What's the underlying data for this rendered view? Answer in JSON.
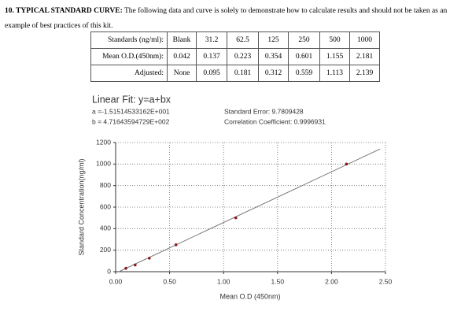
{
  "header": {
    "title": "10. TYPICAL STANDARD CURVE:",
    "text": "The following data and curve is solely to demonstrate how to calculate results and should not be taken as an example of best practices of this kit."
  },
  "table": {
    "rows": [
      [
        "Standards (ng/ml):",
        "Blank",
        "31.2",
        "62.5",
        "125",
        "250",
        "500",
        "1000"
      ],
      [
        "Mean O.D.(450nm):",
        "0.042",
        "0.137",
        "0.223",
        "0.354",
        "0.601",
        "1.155",
        "2.181"
      ],
      [
        "Adjusted:",
        "None",
        "0.095",
        "0.181",
        "0.312",
        "0.559",
        "1.113",
        "2.139"
      ]
    ]
  },
  "fit": {
    "title": "Linear Fit: y=a+bx",
    "a": "a =-1.51514533162E+001",
    "b": "b = 4.71643594729E+002",
    "standard_error": "Standard Error: 9.7809428",
    "correlation": "Correlation Coefficient: 0.9996931"
  },
  "chart_data": {
    "type": "scatter",
    "x": [
      0.095,
      0.181,
      0.312,
      0.559,
      1.113,
      2.139
    ],
    "values": [
      31.2,
      62.5,
      125,
      250,
      500,
      1000
    ],
    "color": "#8b1a1a",
    "fit": {
      "x": [
        0.03,
        2.45
      ],
      "values": [
        0,
        1140
      ],
      "color": "#777777"
    },
    "xlabel": "Mean O.D (450nm)",
    "ylabel": "Standard Concentration(ng/ml)",
    "xlim": [
      0,
      2.5
    ],
    "ylim": [
      0,
      1200
    ],
    "xticks": [
      {
        "value": 0,
        "label": "0.00"
      },
      {
        "value": 0.5,
        "label": "0.50"
      },
      {
        "value": 1,
        "label": "1.00"
      },
      {
        "value": 1.5,
        "label": "1.50"
      },
      {
        "value": 2,
        "label": "2.00"
      },
      {
        "value": 2.5,
        "label": "2.50"
      }
    ],
    "yticks": [
      0,
      200,
      400,
      600,
      800,
      1000,
      1200
    ],
    "grid": true
  }
}
